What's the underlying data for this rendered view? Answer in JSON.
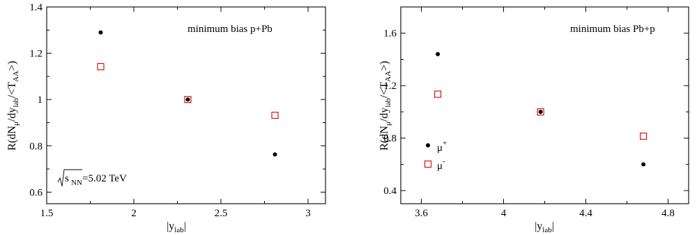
{
  "chart_data": [
    {
      "type": "scatter",
      "xlabel": "|y_lab|",
      "ylabel": "R(dN_μ/dy_lab/<T_AA>)",
      "xlim": [
        1.5,
        3.1
      ],
      "ylim": [
        0.55,
        1.4
      ],
      "xticks": [
        1.5,
        2,
        2.5,
        3
      ],
      "yticks": [
        0.6,
        0.8,
        1,
        1.2,
        1.4
      ],
      "xtick_labels": [
        "1.5",
        "2",
        "2.5",
        "3"
      ],
      "ytick_labels": [
        "0.6",
        "0.8",
        "1",
        "1.2",
        "1.4"
      ],
      "grid": false,
      "annotations": {
        "system": "minimum bias p+Pb",
        "energy_sqrt": "s",
        "energy_sub": "NN",
        "energy_value": "=5.02 TeV"
      },
      "series": [
        {
          "marker": "filled-circle",
          "color": "#000000",
          "x": [
            1.81,
            2.31,
            2.81
          ],
          "y": [
            1.29,
            1.0,
            0.763
          ]
        },
        {
          "marker": "open-square",
          "color": "#d40000",
          "x": [
            1.81,
            2.31,
            2.81
          ],
          "y": [
            1.142,
            1.0,
            0.932
          ]
        }
      ]
    },
    {
      "type": "scatter",
      "xlabel": "|y_lab|",
      "ylabel": "R(dN_μ/dy_lab/<T_AA>)",
      "xlim": [
        3.5,
        4.9
      ],
      "ylim": [
        0.3,
        1.8
      ],
      "xticks": [
        3.6,
        4.0,
        4.4,
        4.8
      ],
      "yticks": [
        0.4,
        0.8,
        1.2,
        1.6
      ],
      "xtick_labels": [
        "3.6",
        "4",
        "4.4",
        "4.8"
      ],
      "ytick_labels": [
        "0.4",
        "0.8",
        "1.2",
        "1.6"
      ],
      "grid": false,
      "legend": "bottom-left",
      "annotations": {
        "system": "minimum bias Pb+p"
      },
      "series": [
        {
          "name": "μ+",
          "marker": "filled-circle",
          "color": "#000000",
          "x": [
            3.68,
            4.18,
            4.68
          ],
          "y": [
            1.44,
            1.0,
            0.6
          ]
        },
        {
          "name": "μ-",
          "marker": "open-square",
          "color": "#d40000",
          "x": [
            3.68,
            4.18,
            4.68
          ],
          "y": [
            1.135,
            1.0,
            0.815
          ]
        }
      ]
    }
  ]
}
